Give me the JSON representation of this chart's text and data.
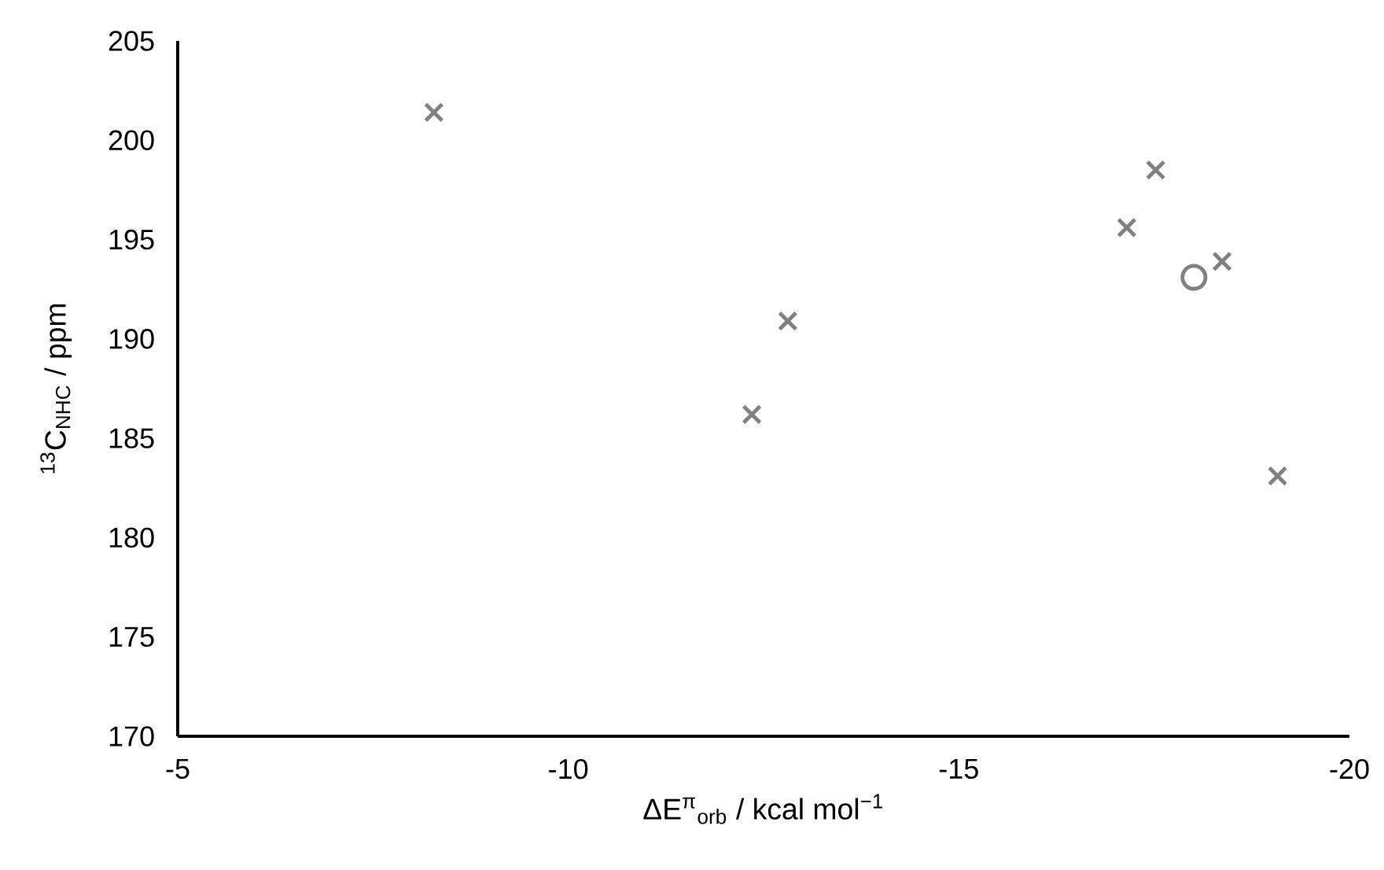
{
  "chart_data": {
    "type": "scatter",
    "xlabel": "ΔE$^{π}$$_{orb}$ / kcal mol$^{−1}$",
    "ylabel": "$^{13}$C$_{NHC}$ / ppm",
    "xlim": [
      -5,
      -20
    ],
    "xticks": [
      -5,
      -10,
      -15,
      -20
    ],
    "ylim": [
      170,
      205
    ],
    "yticks": [
      170,
      175,
      180,
      185,
      190,
      195,
      200,
      205
    ],
    "grid": false,
    "series": [
      {
        "color": "#808080",
        "marker": "cross",
        "x": [
          -8.28,
          -12.35,
          -12.81,
          -17.15,
          -17.52,
          -18.37,
          -19.08
        ],
        "values": [
          201.4,
          186.2,
          190.9,
          195.6,
          198.5,
          193.9,
          183.1
        ]
      },
      {
        "color": "#808080",
        "marker": "circle",
        "x": [
          -18.01
        ],
        "values": [
          193.1
        ]
      }
    ]
  }
}
